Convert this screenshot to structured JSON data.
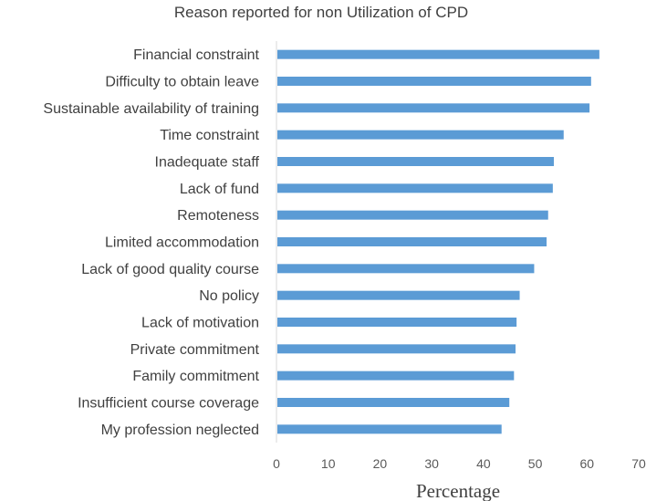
{
  "chart_data": {
    "type": "bar",
    "orientation": "horizontal",
    "title": "Reason reported for non Utilization of CPD",
    "xlabel": "Percentage",
    "ylabel": "",
    "xlim": [
      0,
      70
    ],
    "x_ticks": [
      0,
      10,
      20,
      30,
      40,
      50,
      60,
      70
    ],
    "grid": false,
    "bar_color": "#5b9bd5",
    "categories": [
      "Financial constraint",
      "Difficulty to obtain leave",
      "Sustainable availability of training",
      "Time constraint",
      "Inadequate staff",
      "Lack of fund",
      "Remoteness",
      "Limited accommodation",
      "Lack of good quality course",
      "No policy",
      "Lack of motivation",
      "Private commitment",
      "Family commitment",
      "Insufficient course coverage",
      "My profession neglected"
    ],
    "values": [
      62.4,
      60.8,
      60.5,
      55.5,
      53.6,
      53.4,
      52.5,
      52.2,
      49.8,
      47.0,
      46.4,
      46.2,
      45.9,
      45.0,
      43.5
    ]
  }
}
